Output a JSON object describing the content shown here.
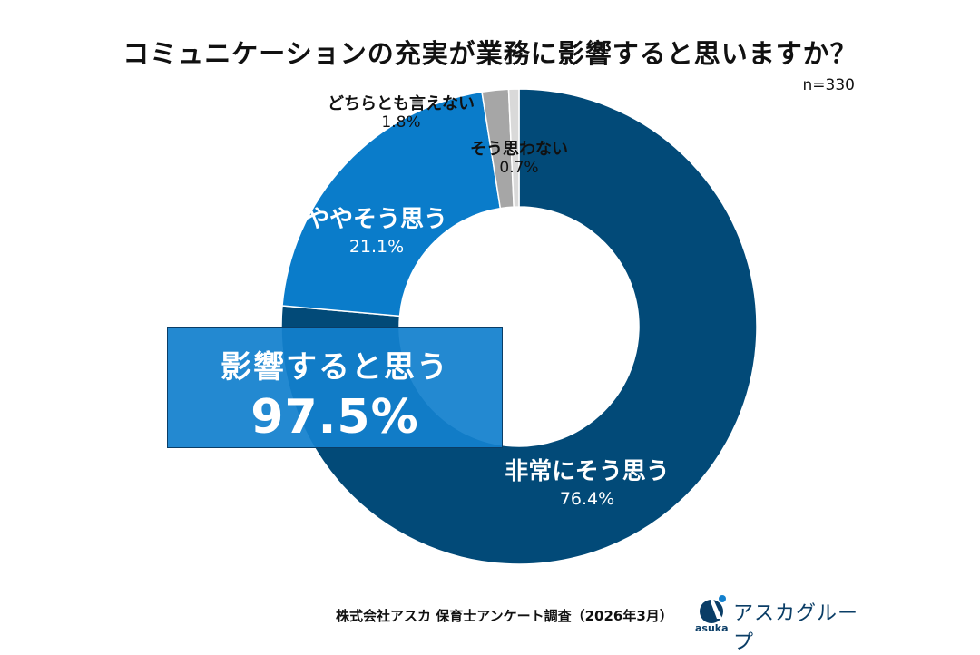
{
  "chart_data": {
    "type": "pie",
    "title": "コミュニケーションの充実が業務に影響すると思いますか？",
    "sample_size": "n=330",
    "slices": [
      {
        "label": "非常にそう思う",
        "value": 76.4,
        "value_text": "76.4%",
        "color": "#024a78"
      },
      {
        "label": "ややそう思う",
        "value": 21.1,
        "value_text": "21.1%",
        "color": "#0a7cca"
      },
      {
        "label": "どちらとも言えない",
        "value": 1.8,
        "value_text": "1.8%",
        "color": "#a6a6a6"
      },
      {
        "label": "そう思わない",
        "value": 0.7,
        "value_text": "0.7%",
        "color": "#d9d9d9"
      }
    ],
    "highlight": {
      "label": "影響すると思う",
      "value_text": "97.5%"
    }
  },
  "footer": {
    "source": "株式会社アスカ 保育士アンケート調査（2026年3月）"
  },
  "brand": {
    "name": "アスカグループ",
    "sub": "asuka",
    "color": "#0a3d66"
  }
}
